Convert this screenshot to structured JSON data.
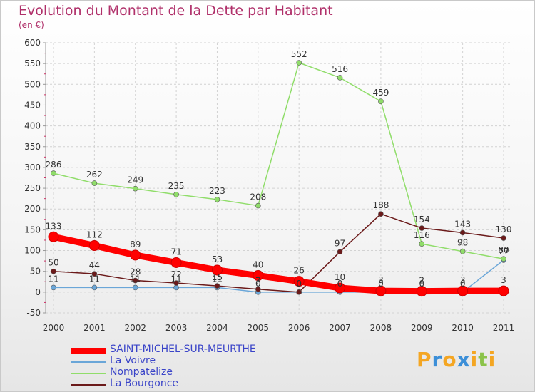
{
  "chart_data": {
    "type": "line",
    "title": "Evolution du Montant de la Dette par Habitant",
    "subtitle": "(en €)",
    "x": [
      "2000",
      "2001",
      "2002",
      "2003",
      "2004",
      "2005",
      "2006",
      "2007",
      "2008",
      "2009",
      "2010",
      "2011"
    ],
    "ylim": [
      -50,
      600
    ],
    "yticks": [
      -50,
      0,
      50,
      100,
      150,
      200,
      250,
      300,
      350,
      400,
      450,
      500,
      550,
      600
    ],
    "grid": true,
    "legend_position": "bottom-left",
    "series": [
      {
        "name": "SAINT-MICHEL-SUR-MEURTHE",
        "color": "#ff0000",
        "values": [
          133,
          112,
          89,
          71,
          53,
          40,
          26,
          10,
          3,
          2,
          3,
          3
        ]
      },
      {
        "name": "La Voivre",
        "color": "#6aa6d8",
        "values": [
          11,
          11,
          11,
          11,
          11,
          0,
          0,
          0,
          0,
          0,
          0,
          77
        ]
      },
      {
        "name": "Nompatelize",
        "color": "#90dd6a",
        "values": [
          286,
          262,
          249,
          235,
          223,
          208,
          552,
          516,
          459,
          116,
          98,
          80
        ]
      },
      {
        "name": "La Bourgonce",
        "color": "#6b1a1a",
        "values": [
          50,
          44,
          28,
          22,
          15,
          7,
          0,
          97,
          188,
          154,
          143,
          130
        ]
      }
    ],
    "labels": [
      {
        "series": 0,
        "text": [
          "133",
          "112",
          "89",
          "71",
          "53",
          "40",
          "26",
          "10",
          "3",
          "2",
          "3",
          "3"
        ]
      },
      {
        "series": 1,
        "text": [
          "11",
          "11",
          "11",
          "11",
          "11",
          "0",
          "0",
          "0",
          "0",
          "0",
          "0",
          "77"
        ]
      },
      {
        "series": 2,
        "text": [
          "286",
          "262",
          "249",
          "235",
          "223",
          "208",
          "552",
          "516",
          "459",
          "116",
          "98",
          "80"
        ]
      },
      {
        "series": 3,
        "text": [
          "50",
          "44",
          "28",
          "22",
          "15",
          "7",
          "0",
          "97",
          "188",
          "154",
          "143",
          "130"
        ]
      }
    ]
  },
  "brand": {
    "letters": [
      "P",
      "r",
      "o",
      "x",
      "i",
      "t",
      "i"
    ],
    "colors": [
      "#f4a623",
      "#3c8fd8",
      "#f4a623",
      "#3c8fd8",
      "#f4a623",
      "#8bc34a",
      "#f4a623"
    ]
  }
}
